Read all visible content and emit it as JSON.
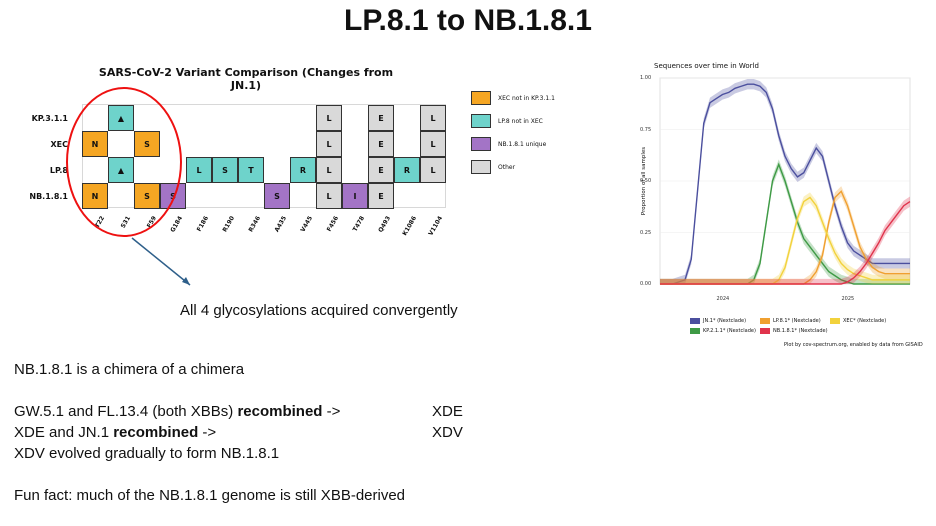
{
  "slide": {
    "title": "LP.8.1 to NB.1.8.1",
    "caption": "All 4 glycosylations acquired convergently",
    "body": {
      "line1": "NB.1.8.1 is a chimera of a chimera",
      "line2_prefix": "GW.5.1 and FL.13.4 (both XBBs) ",
      "line2_bold": "recombined",
      "line2_suffix": " ->",
      "line2_right": "XDE",
      "line3_prefix": "XDE and JN.1 ",
      "line3_bold": "recombined",
      "line3_suffix": " ->",
      "line3_right": "XDV",
      "line4": "XDV evolved gradually to form NB.1.8.1",
      "line5": "Fun fact: much of the NB.1.8.1 genome is still XBB-derived"
    }
  },
  "colors": {
    "orange": "#F5A623",
    "teal": "#6ED3CB",
    "purple": "#A374C6",
    "grey": "#D9D9D9",
    "ellipse": "#E11111",
    "arrow": "#2E5F8A"
  },
  "chart_data": [
    {
      "type": "heatmap",
      "title": "SARS-CoV-2 Variant Comparison (Changes from JN.1)",
      "rows": [
        "KP.3.1.1",
        "XEC",
        "LP.8",
        "NB.1.8.1"
      ],
      "columns": [
        "T22",
        "S31",
        "F59",
        "G184",
        "F186",
        "R190",
        "R346",
        "A435",
        "V445",
        "F456",
        "T478",
        "Q493",
        "K1086",
        "V1104"
      ],
      "cells": [
        {
          "row": 0,
          "col": 1,
          "text": "▲",
          "category": "teal"
        },
        {
          "row": 0,
          "col": 9,
          "text": "L",
          "category": "grey"
        },
        {
          "row": 0,
          "col": 11,
          "text": "E",
          "category": "grey"
        },
        {
          "row": 0,
          "col": 13,
          "text": "L",
          "category": "grey"
        },
        {
          "row": 1,
          "col": 0,
          "text": "N",
          "category": "orange"
        },
        {
          "row": 1,
          "col": 2,
          "text": "S",
          "category": "orange"
        },
        {
          "row": 1,
          "col": 9,
          "text": "L",
          "category": "grey"
        },
        {
          "row": 1,
          "col": 11,
          "text": "E",
          "category": "grey"
        },
        {
          "row": 1,
          "col": 13,
          "text": "L",
          "category": "grey"
        },
        {
          "row": 2,
          "col": 1,
          "text": "▲",
          "category": "teal"
        },
        {
          "row": 2,
          "col": 4,
          "text": "L",
          "category": "teal"
        },
        {
          "row": 2,
          "col": 5,
          "text": "S",
          "category": "teal"
        },
        {
          "row": 2,
          "col": 6,
          "text": "T",
          "category": "teal"
        },
        {
          "row": 2,
          "col": 8,
          "text": "R",
          "category": "teal"
        },
        {
          "row": 2,
          "col": 9,
          "text": "L",
          "category": "grey"
        },
        {
          "row": 2,
          "col": 11,
          "text": "E",
          "category": "grey"
        },
        {
          "row": 2,
          "col": 12,
          "text": "R",
          "category": "teal"
        },
        {
          "row": 2,
          "col": 13,
          "text": "L",
          "category": "grey"
        },
        {
          "row": 3,
          "col": 0,
          "text": "N",
          "category": "orange"
        },
        {
          "row": 3,
          "col": 2,
          "text": "S",
          "category": "orange"
        },
        {
          "row": 3,
          "col": 3,
          "text": "S",
          "category": "purple"
        },
        {
          "row": 3,
          "col": 7,
          "text": "S",
          "category": "purple"
        },
        {
          "row": 3,
          "col": 9,
          "text": "L",
          "category": "grey"
        },
        {
          "row": 3,
          "col": 10,
          "text": "I",
          "category": "purple"
        },
        {
          "row": 3,
          "col": 11,
          "text": "E",
          "category": "grey"
        }
      ],
      "legend": [
        {
          "label": "XEC not in KP.3.1.1",
          "category": "orange"
        },
        {
          "label": "LP.8 not in XEC",
          "category": "teal"
        },
        {
          "label": "NB.1.8.1 unique",
          "category": "purple"
        },
        {
          "label": "Other",
          "category": "grey"
        }
      ]
    },
    {
      "type": "line",
      "title": "Sequences over time in World",
      "ylabel": "Proportion of all samples",
      "yticks": [
        "0.00",
        "0.25",
        "0.50",
        "0.75",
        "1.00"
      ],
      "xticks": [
        "2024",
        "2025"
      ],
      "ylim": [
        0,
        1
      ],
      "x": [
        0,
        4,
        8,
        10,
        12,
        14,
        16,
        18,
        20,
        22,
        24,
        26,
        28,
        30,
        32,
        34,
        36,
        38,
        40,
        42,
        44,
        46,
        48,
        50,
        52,
        54,
        56,
        58,
        60,
        62,
        64,
        66,
        68,
        70,
        72,
        74,
        76,
        78,
        80
      ],
      "series": [
        {
          "name": "JN.1* (Nextclade)",
          "color": "#4B4F9E",
          "values": [
            0,
            0,
            0.02,
            0.12,
            0.45,
            0.78,
            0.88,
            0.9,
            0.92,
            0.93,
            0.95,
            0.96,
            0.97,
            0.97,
            0.96,
            0.93,
            0.85,
            0.72,
            0.62,
            0.56,
            0.52,
            0.54,
            0.6,
            0.66,
            0.62,
            0.5,
            0.38,
            0.28,
            0.2,
            0.16,
            0.14,
            0.12,
            0.1,
            0.1,
            0.1,
            0.1,
            0.1,
            0.1,
            0.1
          ]
        },
        {
          "name": "KP.2.1.1* (Nextclade)",
          "color": "#3E9A45",
          "values": [
            0,
            0,
            0,
            0,
            0,
            0,
            0,
            0,
            0,
            0,
            0,
            0,
            0,
            0.02,
            0.1,
            0.3,
            0.5,
            0.58,
            0.5,
            0.4,
            0.3,
            0.22,
            0.18,
            0.14,
            0.1,
            0.06,
            0.04,
            0.02,
            0.01,
            0,
            0,
            0,
            0,
            0,
            0,
            0,
            0,
            0,
            0
          ]
        },
        {
          "name": "LP.8.1* (Nextclade)",
          "color": "#F0A030",
          "values": [
            0,
            0,
            0,
            0,
            0,
            0,
            0,
            0,
            0,
            0,
            0,
            0,
            0,
            0,
            0,
            0,
            0,
            0,
            0,
            0,
            0,
            0,
            0.02,
            0.06,
            0.14,
            0.3,
            0.42,
            0.45,
            0.38,
            0.28,
            0.18,
            0.12,
            0.08,
            0.06,
            0.05,
            0.05,
            0.05,
            0.05,
            0.05
          ]
        },
        {
          "name": "XEC* (Nextclade)",
          "color": "#F2D23C",
          "values": [
            0,
            0,
            0,
            0,
            0,
            0,
            0,
            0,
            0,
            0,
            0,
            0,
            0,
            0,
            0,
            0,
            0,
            0.02,
            0.08,
            0.2,
            0.32,
            0.4,
            0.42,
            0.38,
            0.3,
            0.22,
            0.15,
            0.1,
            0.07,
            0.05,
            0.04,
            0.03,
            0.02,
            0.02,
            0.02,
            0.02,
            0.02,
            0.02,
            0.02
          ]
        },
        {
          "name": "NB.1.8.1* (Nextclade)",
          "color": "#E0334C",
          "values": [
            0,
            0,
            0,
            0,
            0,
            0,
            0,
            0,
            0,
            0,
            0,
            0,
            0,
            0,
            0,
            0,
            0,
            0,
            0,
            0,
            0,
            0,
            0,
            0,
            0,
            0,
            0,
            0,
            0.01,
            0.03,
            0.06,
            0.1,
            0.15,
            0.2,
            0.26,
            0.3,
            0.34,
            0.38,
            0.4
          ]
        }
      ],
      "credit": "Plot by cov-spectrum.org, enabled by data from GISAID"
    }
  ]
}
